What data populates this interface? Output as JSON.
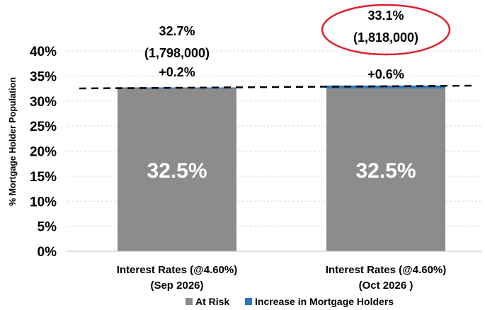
{
  "chart_data": {
    "type": "bar",
    "stacked": true,
    "ylabel": "% Mortgage Holder Population",
    "ylim": [
      0,
      40
    ],
    "yticks": [
      0,
      5,
      10,
      15,
      20,
      25,
      30,
      35,
      40
    ],
    "ytick_labels": [
      "0%",
      "5%",
      "10%",
      "15%",
      "20%",
      "25%",
      "30%",
      "35%",
      "40%"
    ],
    "grid": true,
    "categories": [
      [
        "Interest Rates    (@4.60%)",
        "(Sep 2026)"
      ],
      [
        "Interest Rates    (@4.60%)",
        "(Oct 2026 )"
      ]
    ],
    "series": [
      {
        "name": "At Risk",
        "color": "#8c8c8c",
        "values": [
          32.5,
          32.5
        ],
        "labels": [
          "32.5%",
          "32.5%"
        ]
      },
      {
        "name": "Increase in Mortgage Holders",
        "color": "#2e75b6",
        "values": [
          0.2,
          0.6
        ]
      }
    ],
    "totals": [
      {
        "value": "32.7%",
        "count": "(1,798,000)",
        "increase": "+0.2%",
        "highlighted": false
      },
      {
        "value": "33.1%",
        "count": "(1,818,000)",
        "increase": "+0.6%",
        "highlighted": true
      }
    ],
    "reference_line": {
      "y": 32.5,
      "style": "dashed",
      "color": "#000000"
    },
    "highlight_color": "#e0202e",
    "legend_position": "bottom"
  }
}
